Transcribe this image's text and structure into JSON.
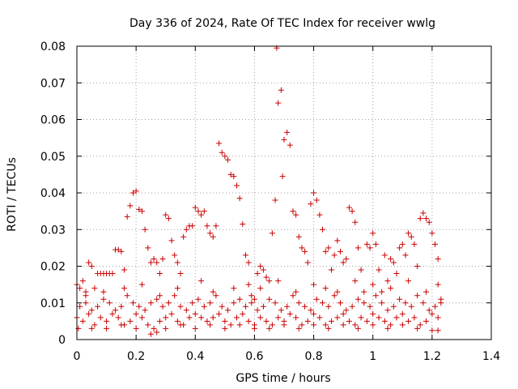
{
  "chart_data": {
    "type": "scatter",
    "title": "Day 336 of 2024, Rate Of TEC Index for receiver wwlg",
    "xlabel": "GPS time / hours",
    "ylabel": "ROTI / TECUs",
    "xlim": [
      0,
      1.4
    ],
    "ylim": [
      0,
      0.08
    ],
    "xticks": [
      0,
      0.2,
      0.4,
      0.6,
      0.8,
      1,
      1.2,
      1.4
    ],
    "xtick_labels": [
      "0",
      "0.2",
      "0.4",
      "0.6",
      "0.8",
      "1",
      "1.2",
      "1.4"
    ],
    "yticks": [
      0,
      0.01,
      0.02,
      0.03,
      0.04,
      0.05,
      0.06,
      0.07,
      0.08
    ],
    "ytick_labels": [
      "0",
      "0.01",
      "0.02",
      "0.03",
      "0.04",
      "0.05",
      "0.06",
      "0.07",
      "0.08"
    ],
    "grid": true,
    "marker": "+",
    "color": "#cc0000",
    "series": [
      {
        "name": "ROTI",
        "points": [
          [
            0.0,
            0.015
          ],
          [
            0.01,
            0.014
          ],
          [
            0.02,
            0.016
          ],
          [
            0.03,
            0.012
          ],
          [
            0.04,
            0.021
          ],
          [
            0.05,
            0.02
          ],
          [
            0.06,
            0.014
          ],
          [
            0.07,
            0.018
          ],
          [
            0.08,
            0.018
          ],
          [
            0.09,
            0.018
          ],
          [
            0.1,
            0.018
          ],
          [
            0.11,
            0.018
          ],
          [
            0.12,
            0.018
          ],
          [
            0.13,
            0.0245
          ],
          [
            0.14,
            0.0245
          ],
          [
            0.15,
            0.024
          ],
          [
            0.16,
            0.019
          ],
          [
            0.17,
            0.0335
          ],
          [
            0.18,
            0.0365
          ],
          [
            0.19,
            0.04
          ],
          [
            0.2,
            0.0405
          ],
          [
            0.21,
            0.0355
          ],
          [
            0.22,
            0.035
          ],
          [
            0.23,
            0.03
          ],
          [
            0.24,
            0.025
          ],
          [
            0.25,
            0.021
          ],
          [
            0.26,
            0.022
          ],
          [
            0.27,
            0.021
          ],
          [
            0.28,
            0.018
          ],
          [
            0.29,
            0.022
          ],
          [
            0.3,
            0.034
          ],
          [
            0.31,
            0.033
          ],
          [
            0.32,
            0.027
          ],
          [
            0.33,
            0.023
          ],
          [
            0.34,
            0.021
          ],
          [
            0.35,
            0.018
          ],
          [
            0.36,
            0.028
          ],
          [
            0.37,
            0.03
          ],
          [
            0.38,
            0.031
          ],
          [
            0.39,
            0.031
          ],
          [
            0.4,
            0.036
          ],
          [
            0.41,
            0.035
          ],
          [
            0.42,
            0.034
          ],
          [
            0.43,
            0.035
          ],
          [
            0.44,
            0.031
          ],
          [
            0.45,
            0.029
          ],
          [
            0.46,
            0.028
          ],
          [
            0.47,
            0.031
          ],
          [
            0.48,
            0.0535
          ],
          [
            0.49,
            0.051
          ],
          [
            0.5,
            0.05
          ],
          [
            0.51,
            0.049
          ],
          [
            0.52,
            0.045
          ],
          [
            0.53,
            0.0445
          ],
          [
            0.54,
            0.042
          ],
          [
            0.55,
            0.0385
          ],
          [
            0.56,
            0.0315
          ],
          [
            0.57,
            0.023
          ],
          [
            0.58,
            0.021
          ],
          [
            0.59,
            0.012
          ],
          [
            0.6,
            0.011
          ],
          [
            0.61,
            0.018
          ],
          [
            0.62,
            0.02
          ],
          [
            0.63,
            0.019
          ],
          [
            0.64,
            0.017
          ],
          [
            0.65,
            0.016
          ],
          [
            0.66,
            0.029
          ],
          [
            0.67,
            0.038
          ],
          [
            0.675,
            0.0795
          ],
          [
            0.68,
            0.0645
          ],
          [
            0.69,
            0.068
          ],
          [
            0.695,
            0.0445
          ],
          [
            0.7,
            0.0545
          ],
          [
            0.71,
            0.0565
          ],
          [
            0.72,
            0.053
          ],
          [
            0.73,
            0.035
          ],
          [
            0.74,
            0.034
          ],
          [
            0.75,
            0.028
          ],
          [
            0.76,
            0.025
          ],
          [
            0.77,
            0.024
          ],
          [
            0.78,
            0.021
          ],
          [
            0.79,
            0.037
          ],
          [
            0.8,
            0.04
          ],
          [
            0.81,
            0.038
          ],
          [
            0.82,
            0.034
          ],
          [
            0.83,
            0.03
          ],
          [
            0.84,
            0.024
          ],
          [
            0.85,
            0.025
          ],
          [
            0.86,
            0.019
          ],
          [
            0.87,
            0.023
          ],
          [
            0.88,
            0.027
          ],
          [
            0.89,
            0.024
          ],
          [
            0.9,
            0.021
          ],
          [
            0.91,
            0.022
          ],
          [
            0.92,
            0.036
          ],
          [
            0.93,
            0.035
          ],
          [
            0.94,
            0.032
          ],
          [
            0.95,
            0.025
          ],
          [
            0.96,
            0.019
          ],
          [
            0.97,
            0.013
          ],
          [
            0.98,
            0.026
          ],
          [
            0.99,
            0.025
          ],
          [
            1.0,
            0.029
          ],
          [
            1.01,
            0.026
          ],
          [
            1.02,
            0.019
          ],
          [
            1.03,
            0.013
          ],
          [
            1.04,
            0.023
          ],
          [
            1.05,
            0.016
          ],
          [
            1.06,
            0.022
          ],
          [
            1.07,
            0.021
          ],
          [
            1.08,
            0.018
          ],
          [
            1.09,
            0.025
          ],
          [
            1.1,
            0.026
          ],
          [
            1.11,
            0.023
          ],
          [
            1.12,
            0.029
          ],
          [
            1.13,
            0.028
          ],
          [
            1.14,
            0.026
          ],
          [
            1.15,
            0.02
          ],
          [
            1.16,
            0.033
          ],
          [
            1.17,
            0.0345
          ],
          [
            1.18,
            0.033
          ],
          [
            1.19,
            0.032
          ],
          [
            1.2,
            0.029
          ],
          [
            1.21,
            0.026
          ],
          [
            1.22,
            0.022
          ],
          [
            1.23,
            0.011
          ],
          [
            0.0,
            0.006
          ],
          [
            0.02,
            0.005
          ],
          [
            0.04,
            0.007
          ],
          [
            0.06,
            0.004
          ],
          [
            0.08,
            0.006
          ],
          [
            0.1,
            0.005
          ],
          [
            0.12,
            0.007
          ],
          [
            0.14,
            0.006
          ],
          [
            0.16,
            0.004
          ],
          [
            0.18,
            0.005
          ],
          [
            0.2,
            0.007
          ],
          [
            0.22,
            0.006
          ],
          [
            0.24,
            0.004
          ],
          [
            0.26,
            0.003
          ],
          [
            0.28,
            0.005
          ],
          [
            0.3,
            0.006
          ],
          [
            0.32,
            0.007
          ],
          [
            0.34,
            0.005
          ],
          [
            0.36,
            0.004
          ],
          [
            0.38,
            0.006
          ],
          [
            0.4,
            0.007
          ],
          [
            0.42,
            0.006
          ],
          [
            0.44,
            0.005
          ],
          [
            0.46,
            0.006
          ],
          [
            0.48,
            0.007
          ],
          [
            0.5,
            0.005
          ],
          [
            0.52,
            0.004
          ],
          [
            0.54,
            0.006
          ],
          [
            0.56,
            0.007
          ],
          [
            0.58,
            0.005
          ],
          [
            0.6,
            0.004
          ],
          [
            0.62,
            0.006
          ],
          [
            0.64,
            0.005
          ],
          [
            0.66,
            0.004
          ],
          [
            0.68,
            0.006
          ],
          [
            0.7,
            0.005
          ],
          [
            0.72,
            0.007
          ],
          [
            0.74,
            0.006
          ],
          [
            0.76,
            0.004
          ],
          [
            0.78,
            0.005
          ],
          [
            0.8,
            0.007
          ],
          [
            0.82,
            0.006
          ],
          [
            0.84,
            0.004
          ],
          [
            0.86,
            0.005
          ],
          [
            0.88,
            0.006
          ],
          [
            0.9,
            0.007
          ],
          [
            0.92,
            0.005
          ],
          [
            0.94,
            0.004
          ],
          [
            0.96,
            0.006
          ],
          [
            0.98,
            0.005
          ],
          [
            1.0,
            0.007
          ],
          [
            1.02,
            0.006
          ],
          [
            1.04,
            0.005
          ],
          [
            1.06,
            0.004
          ],
          [
            1.08,
            0.006
          ],
          [
            1.1,
            0.007
          ],
          [
            1.12,
            0.005
          ],
          [
            1.14,
            0.006
          ],
          [
            1.16,
            0.004
          ],
          [
            1.18,
            0.005
          ],
          [
            1.2,
            0.007
          ],
          [
            1.22,
            0.006
          ],
          [
            0.01,
            0.009
          ],
          [
            0.03,
            0.01
          ],
          [
            0.05,
            0.008
          ],
          [
            0.07,
            0.009
          ],
          [
            0.09,
            0.011
          ],
          [
            0.11,
            0.01
          ],
          [
            0.13,
            0.008
          ],
          [
            0.15,
            0.009
          ],
          [
            0.17,
            0.012
          ],
          [
            0.19,
            0.01
          ],
          [
            0.21,
            0.009
          ],
          [
            0.23,
            0.008
          ],
          [
            0.25,
            0.01
          ],
          [
            0.27,
            0.011
          ],
          [
            0.29,
            0.009
          ],
          [
            0.31,
            0.01
          ],
          [
            0.33,
            0.012
          ],
          [
            0.35,
            0.009
          ],
          [
            0.37,
            0.008
          ],
          [
            0.39,
            0.01
          ],
          [
            0.41,
            0.011
          ],
          [
            0.43,
            0.009
          ],
          [
            0.45,
            0.01
          ],
          [
            0.47,
            0.012
          ],
          [
            0.49,
            0.009
          ],
          [
            0.51,
            0.008
          ],
          [
            0.53,
            0.01
          ],
          [
            0.55,
            0.011
          ],
          [
            0.57,
            0.009
          ],
          [
            0.59,
            0.01
          ],
          [
            0.61,
            0.008
          ],
          [
            0.63,
            0.009
          ],
          [
            0.65,
            0.011
          ],
          [
            0.67,
            0.01
          ],
          [
            0.69,
            0.008
          ],
          [
            0.71,
            0.009
          ],
          [
            0.73,
            0.012
          ],
          [
            0.75,
            0.01
          ],
          [
            0.77,
            0.009
          ],
          [
            0.79,
            0.008
          ],
          [
            0.81,
            0.011
          ],
          [
            0.83,
            0.01
          ],
          [
            0.85,
            0.009
          ],
          [
            0.87,
            0.012
          ],
          [
            0.89,
            0.01
          ],
          [
            0.91,
            0.008
          ],
          [
            0.93,
            0.009
          ],
          [
            0.95,
            0.011
          ],
          [
            0.97,
            0.01
          ],
          [
            0.99,
            0.009
          ],
          [
            1.01,
            0.012
          ],
          [
            1.03,
            0.01
          ],
          [
            1.05,
            0.008
          ],
          [
            1.07,
            0.009
          ],
          [
            1.09,
            0.011
          ],
          [
            1.11,
            0.01
          ],
          [
            1.13,
            0.009
          ],
          [
            1.15,
            0.012
          ],
          [
            1.17,
            0.01
          ],
          [
            1.19,
            0.008
          ],
          [
            1.21,
            0.009
          ],
          [
            1.23,
            0.01
          ],
          [
            0.005,
            0.003
          ],
          [
            0.05,
            0.003
          ],
          [
            0.1,
            0.003
          ],
          [
            0.15,
            0.004
          ],
          [
            0.2,
            0.003
          ],
          [
            0.25,
            0.0015
          ],
          [
            0.27,
            0.002
          ],
          [
            0.3,
            0.003
          ],
          [
            0.35,
            0.004
          ],
          [
            0.4,
            0.003
          ],
          [
            0.45,
            0.004
          ],
          [
            0.5,
            0.003
          ],
          [
            0.55,
            0.004
          ],
          [
            0.6,
            0.003
          ],
          [
            0.65,
            0.003
          ],
          [
            0.7,
            0.004
          ],
          [
            0.75,
            0.003
          ],
          [
            0.8,
            0.004
          ],
          [
            0.85,
            0.003
          ],
          [
            0.9,
            0.004
          ],
          [
            0.95,
            0.003
          ],
          [
            1.0,
            0.004
          ],
          [
            1.05,
            0.003
          ],
          [
            1.1,
            0.004
          ],
          [
            1.15,
            0.003
          ],
          [
            1.2,
            0.0025
          ],
          [
            1.22,
            0.0025
          ],
          [
            0.03,
            0.013
          ],
          [
            0.09,
            0.013
          ],
          [
            0.16,
            0.014
          ],
          [
            0.22,
            0.015
          ],
          [
            0.28,
            0.012
          ],
          [
            0.34,
            0.014
          ],
          [
            0.42,
            0.016
          ],
          [
            0.46,
            0.013
          ],
          [
            0.53,
            0.014
          ],
          [
            0.58,
            0.015
          ],
          [
            0.62,
            0.014
          ],
          [
            0.68,
            0.016
          ],
          [
            0.74,
            0.013
          ],
          [
            0.8,
            0.015
          ],
          [
            0.84,
            0.014
          ],
          [
            0.88,
            0.013
          ],
          [
            0.94,
            0.016
          ],
          [
            1.0,
            0.015
          ],
          [
            1.06,
            0.014
          ],
          [
            1.12,
            0.016
          ],
          [
            1.18,
            0.013
          ],
          [
            1.22,
            0.015
          ]
        ]
      }
    ]
  }
}
